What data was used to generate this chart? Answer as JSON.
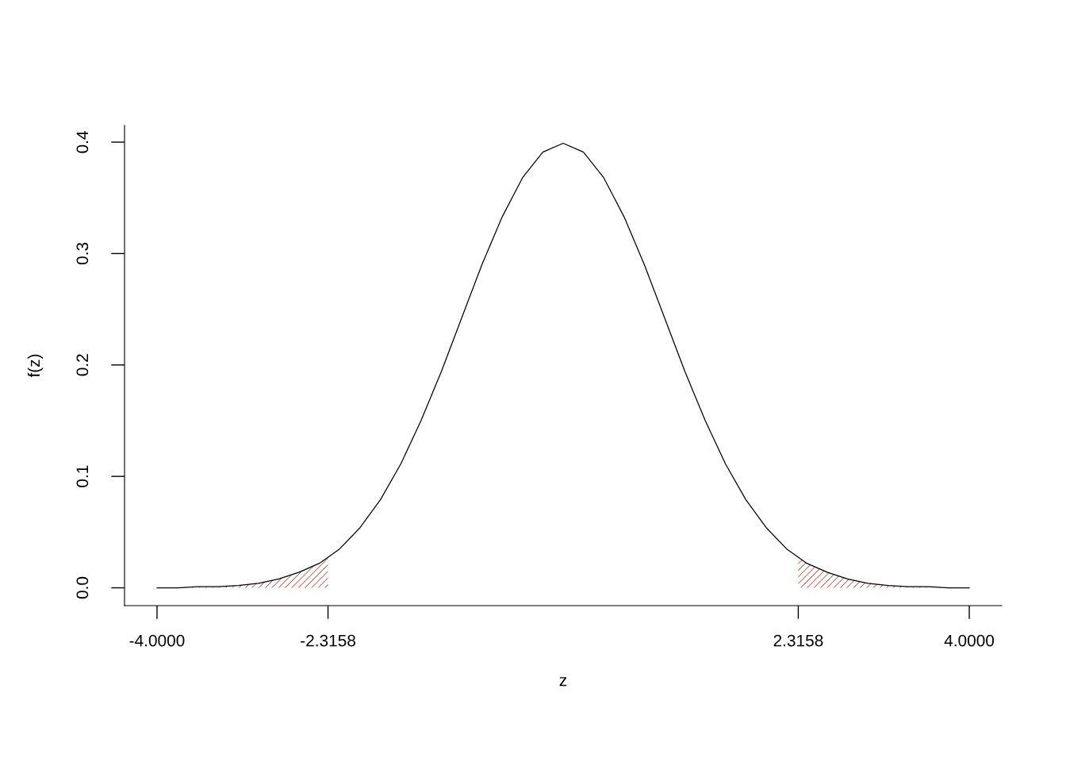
{
  "chart_data": {
    "type": "line",
    "xlabel": "z",
    "ylabel": "f(z)",
    "xlim": [
      -4.32,
      4.32
    ],
    "ylim": [
      -0.016,
      0.415
    ],
    "xticks": [
      {
        "value": -4,
        "label": "-4.0000"
      },
      {
        "value": -2.3158,
        "label": "-2.3158"
      },
      {
        "value": 2.3158,
        "label": "2.3158"
      },
      {
        "value": 4,
        "label": "4.0000"
      }
    ],
    "yticks": [
      {
        "value": 0,
        "label": "0.0"
      },
      {
        "value": 0.1,
        "label": "0.1"
      },
      {
        "value": 0.2,
        "label": "0.2"
      },
      {
        "value": 0.3,
        "label": "0.3"
      },
      {
        "value": 0.4,
        "label": "0.4"
      }
    ],
    "grid": false,
    "legend": false,
    "marker": "none",
    "line_style": "solid",
    "series": [
      {
        "type": "area",
        "color": "#cc0000",
        "x": [
          -4.0,
          -3.8,
          -3.6,
          -3.4,
          -3.2,
          -3.0,
          -2.8,
          -2.6,
          -2.4,
          -2.3158
        ],
        "values": [
          0.0,
          0.0,
          0.001,
          0.001,
          0.002,
          0.004,
          0.008,
          0.014,
          0.022,
          0.027
        ]
      },
      {
        "type": "area",
        "color": "#cc0000",
        "x": [
          2.3158,
          2.4,
          2.6,
          2.8,
          3.0,
          3.2,
          3.4,
          3.6,
          3.8,
          4.0
        ],
        "values": [
          0.027,
          0.022,
          0.014,
          0.008,
          0.004,
          0.002,
          0.001,
          0.001,
          0.0,
          0.0
        ]
      },
      {
        "color": "#000000",
        "x": [
          -4.0,
          -3.8,
          -3.6,
          -3.4,
          -3.2,
          -3.0,
          -2.8,
          -2.6,
          -2.4,
          -2.2,
          -2.0,
          -1.8,
          -1.6,
          -1.4,
          -1.2,
          -1.0,
          -0.8,
          -0.6,
          -0.4,
          -0.2,
          0.0,
          0.2,
          0.4,
          0.6,
          0.8,
          1.0,
          1.2,
          1.4,
          1.6,
          1.8,
          2.0,
          2.2,
          2.4,
          2.6,
          2.8,
          3.0,
          3.2,
          3.4,
          3.6,
          3.8,
          4.0
        ],
        "values": [
          0.0,
          0.0,
          0.001,
          0.001,
          0.002,
          0.004,
          0.008,
          0.014,
          0.022,
          0.035,
          0.054,
          0.079,
          0.111,
          0.15,
          0.194,
          0.242,
          0.29,
          0.333,
          0.368,
          0.391,
          0.399,
          0.391,
          0.368,
          0.333,
          0.29,
          0.242,
          0.194,
          0.15,
          0.111,
          0.079,
          0.054,
          0.035,
          0.022,
          0.014,
          0.008,
          0.004,
          0.002,
          0.001,
          0.001,
          0.0,
          0.0
        ]
      }
    ]
  }
}
